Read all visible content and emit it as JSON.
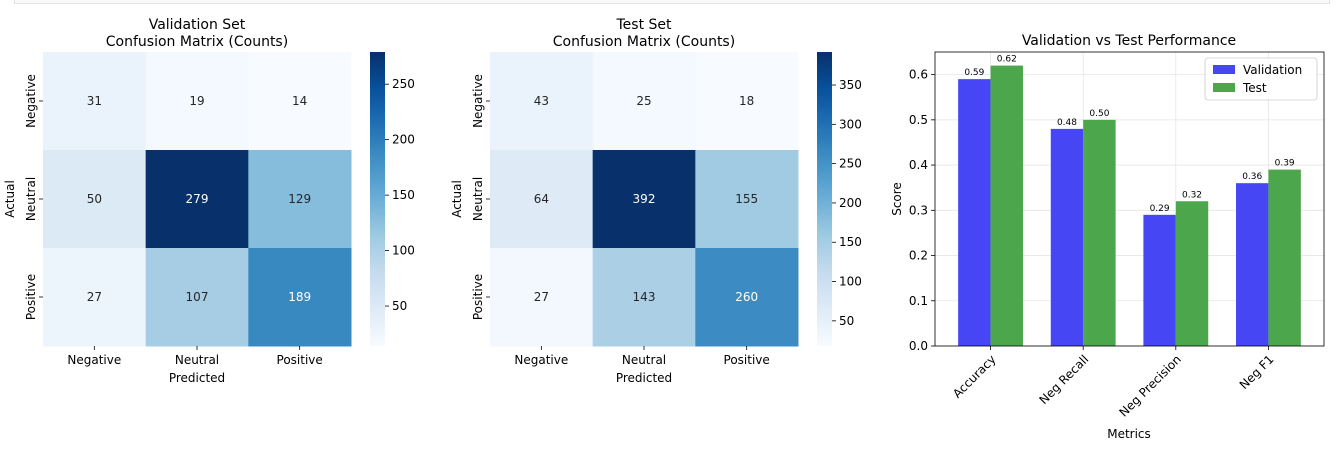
{
  "chart_data": [
    {
      "type": "heatmap",
      "title": [
        "Validation Set",
        "Confusion Matrix (Counts)"
      ],
      "xlabel": "Predicted",
      "ylabel": "Actual",
      "x_categories": [
        "Negative",
        "Neutral",
        "Positive"
      ],
      "y_categories": [
        "Negative",
        "Neutral",
        "Positive"
      ],
      "values": [
        [
          31,
          19,
          14
        ],
        [
          50,
          279,
          129
        ],
        [
          27,
          107,
          189
        ]
      ],
      "colormap": "Blues",
      "vmin": 14,
      "vmax": 279,
      "colorbar_ticks": [
        "50",
        "100",
        "150",
        "200",
        "250"
      ]
    },
    {
      "type": "heatmap",
      "title": [
        "Test Set",
        "Confusion Matrix (Counts)"
      ],
      "xlabel": "Predicted",
      "ylabel": "Actual",
      "x_categories": [
        "Negative",
        "Neutral",
        "Positive"
      ],
      "y_categories": [
        "Negative",
        "Neutral",
        "Positive"
      ],
      "values": [
        [
          43,
          25,
          18
        ],
        [
          64,
          392,
          155
        ],
        [
          27,
          143,
          260
        ]
      ],
      "colormap": "Blues",
      "vmin": 18,
      "vmax": 392,
      "colorbar_ticks": [
        "50",
        "100",
        "150",
        "200",
        "250",
        "300",
        "350"
      ]
    },
    {
      "type": "bar",
      "title": "Validation vs Test Performance",
      "xlabel": "Metrics",
      "ylabel": "Score",
      "categories": [
        "Accuracy",
        "Neg Recall",
        "Neg Precision",
        "Neg F1"
      ],
      "series": [
        {
          "name": "Validation",
          "values": [
            0.59,
            0.48,
            0.29,
            0.36
          ],
          "color": "#4646f5"
        },
        {
          "name": "Test",
          "values": [
            0.62,
            0.5,
            0.32,
            0.39
          ],
          "color": "#4ca64c"
        }
      ],
      "ylim": [
        0,
        0.65
      ],
      "yticks": [
        "0.0",
        "0.1",
        "0.2",
        "0.3",
        "0.4",
        "0.5",
        "0.6"
      ],
      "grid": true,
      "legend": "top-right"
    }
  ]
}
